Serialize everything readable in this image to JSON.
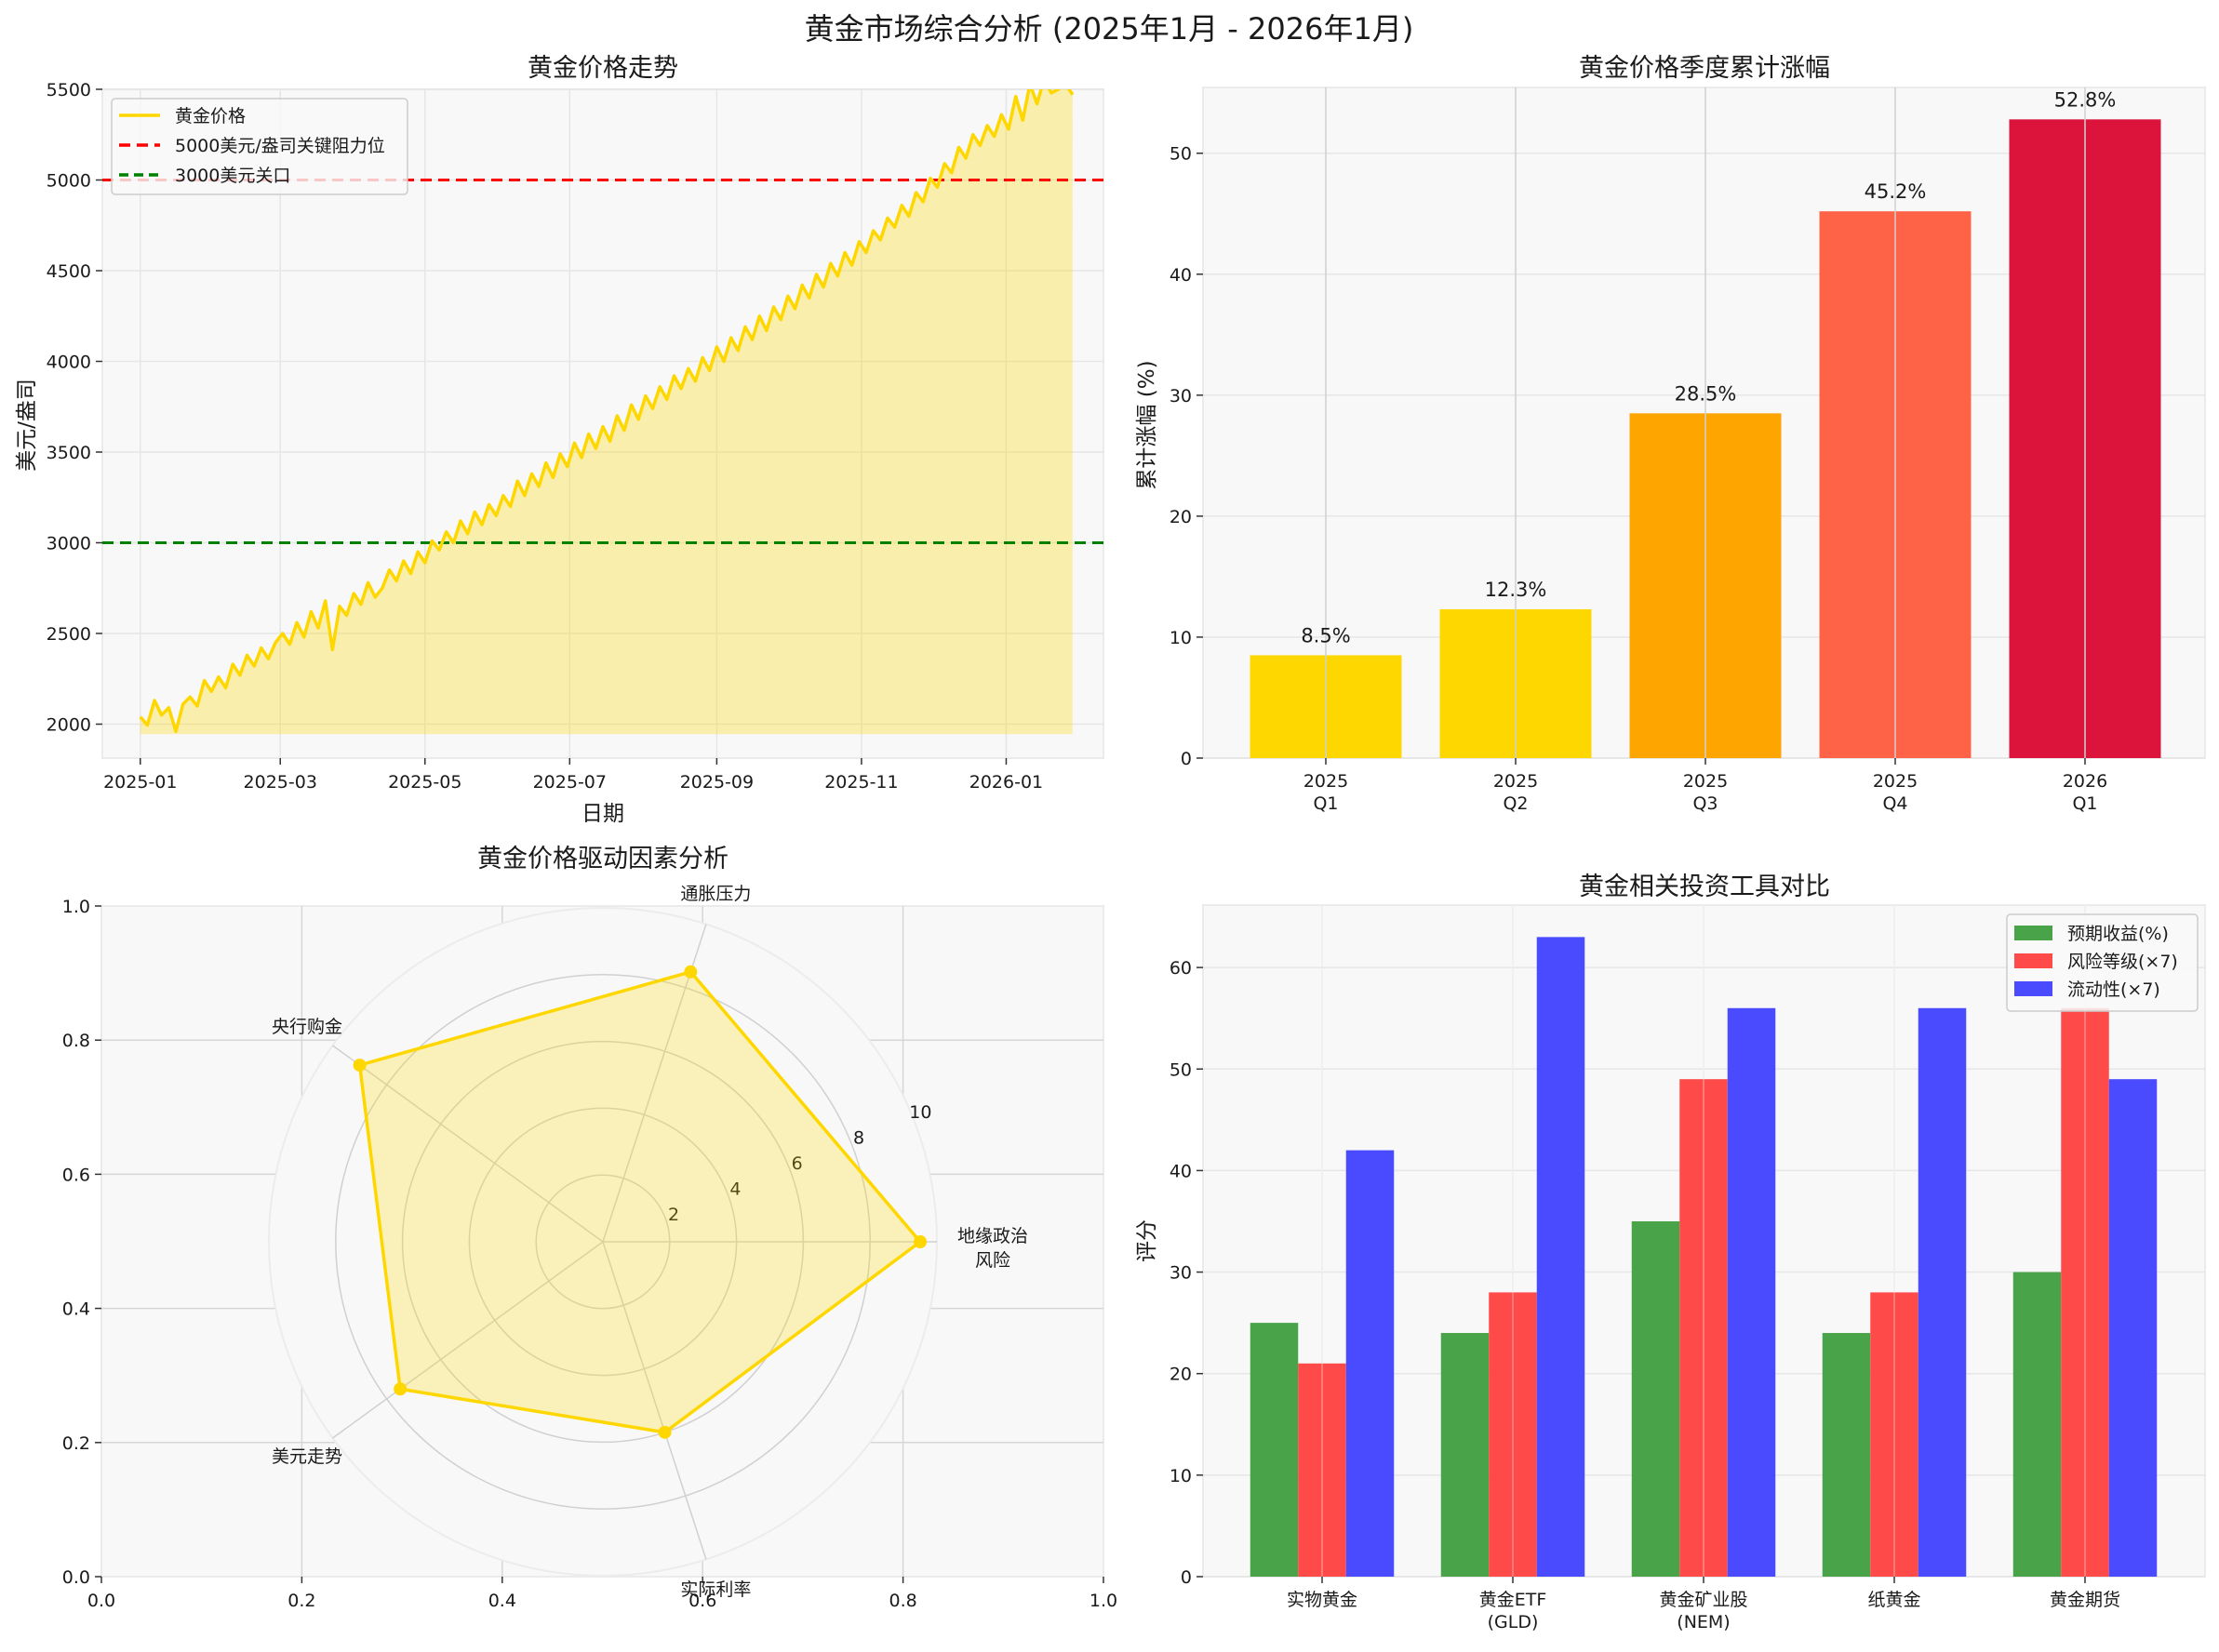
{
  "figure": {
    "title": "黄金市场综合分析 (2025年1月 - 2026年1月)",
    "background": "#ffffff",
    "axes_facecolor": "#f8f8f8",
    "grid_color": "#e6e6e6"
  },
  "chart_data": [
    {
      "id": "price-trend",
      "type": "line",
      "title": "黄金价格走势",
      "xlabel": "日期",
      "ylabel": "美元/盎司",
      "ylim": [
        1800,
        5500
      ],
      "yticks": [
        2000,
        2500,
        3000,
        3500,
        4000,
        4500,
        5000,
        5500
      ],
      "xticks": [
        "2025-01",
        "2025-03",
        "2025-05",
        "2025-07",
        "2025-09",
        "2025-11",
        "2026-01"
      ],
      "xtick_days": [
        0,
        59,
        120,
        181,
        243,
        304,
        365
      ],
      "xlim_days": [
        -16,
        406
      ],
      "grid": true,
      "fill_base": 1945,
      "series": [
        {
          "name": "黄金价格",
          "color": "#FFD700",
          "fill_color": "#FFD700",
          "fill_alpha": 0.3,
          "days": [
            0,
            3,
            6,
            9,
            12,
            15,
            18,
            21,
            24,
            27,
            30,
            33,
            36,
            39,
            42,
            45,
            48,
            51,
            54,
            57,
            60,
            63,
            66,
            69,
            72,
            75,
            78,
            81,
            84,
            87,
            90,
            93,
            96,
            99,
            102,
            105,
            108,
            111,
            114,
            117,
            120,
            123,
            126,
            129,
            132,
            135,
            138,
            141,
            144,
            147,
            150,
            153,
            156,
            159,
            162,
            165,
            168,
            171,
            174,
            177,
            180,
            183,
            186,
            189,
            192,
            195,
            198,
            201,
            204,
            207,
            210,
            213,
            216,
            219,
            222,
            225,
            228,
            231,
            234,
            237,
            240,
            243,
            246,
            249,
            252,
            255,
            258,
            261,
            264,
            267,
            270,
            273,
            276,
            279,
            282,
            285,
            288,
            291,
            294,
            297,
            300,
            303,
            306,
            309,
            312,
            315,
            318,
            321,
            324,
            327,
            330,
            333,
            336,
            339,
            342,
            345,
            348,
            351,
            354,
            357,
            360,
            363,
            366,
            369,
            372,
            375,
            378,
            381,
            384,
            387,
            390,
            393
          ],
          "values": [
            2040,
            1995,
            2130,
            2050,
            2090,
            1960,
            2110,
            2150,
            2100,
            2240,
            2180,
            2260,
            2200,
            2330,
            2270,
            2380,
            2320,
            2420,
            2360,
            2450,
            2500,
            2440,
            2560,
            2480,
            2620,
            2530,
            2680,
            2410,
            2650,
            2600,
            2720,
            2660,
            2780,
            2700,
            2750,
            2850,
            2790,
            2900,
            2830,
            2950,
            2890,
            3010,
            2960,
            3060,
            3000,
            3120,
            3050,
            3170,
            3100,
            3210,
            3150,
            3260,
            3200,
            3340,
            3260,
            3380,
            3310,
            3440,
            3360,
            3490,
            3420,
            3550,
            3470,
            3600,
            3520,
            3640,
            3560,
            3700,
            3620,
            3760,
            3680,
            3810,
            3740,
            3860,
            3790,
            3920,
            3850,
            3960,
            3890,
            4020,
            3950,
            4080,
            4000,
            4130,
            4060,
            4190,
            4120,
            4250,
            4170,
            4300,
            4230,
            4360,
            4290,
            4420,
            4350,
            4480,
            4410,
            4540,
            4470,
            4600,
            4530,
            4660,
            4600,
            4720,
            4670,
            4790,
            4740,
            4860,
            4800,
            4930,
            4880,
            5010,
            4960,
            5090,
            5040,
            5180,
            5120,
            5250,
            5190,
            5300,
            5240,
            5360,
            5280,
            5460,
            5330,
            5530,
            5420,
            5560,
            5480,
            5500,
            5530,
            5470
          ]
        }
      ],
      "hlines": [
        {
          "name": "5000美元/盎司关键阻力位",
          "y": 5000,
          "color": "#FF0000",
          "style": "dashed"
        },
        {
          "name": "3000美元关口",
          "y": 3000,
          "color": "#008000",
          "style": "dashed"
        }
      ],
      "legend": {
        "position": "upper left",
        "entries": [
          "黄金价格",
          "5000美元/盎司关键阻力位",
          "3000美元关口"
        ]
      }
    },
    {
      "id": "quarterly-gain",
      "type": "bar",
      "title": "黄金价格季度累计涨幅",
      "xlabel": "",
      "ylabel": "累计涨幅 (%)",
      "ylim": [
        0,
        55.44
      ],
      "yticks": [
        0,
        10,
        20,
        30,
        40,
        50
      ],
      "categories": [
        "2025\nQ1",
        "2025\nQ2",
        "2025\nQ3",
        "2025\nQ4",
        "2026\nQ1"
      ],
      "category_lines": [
        [
          "2025",
          "Q1"
        ],
        [
          "2025",
          "Q2"
        ],
        [
          "2025",
          "Q3"
        ],
        [
          "2025",
          "Q4"
        ],
        [
          "2026",
          "Q1"
        ]
      ],
      "values": [
        8.5,
        12.3,
        28.5,
        45.2,
        52.8
      ],
      "labels": [
        "8.5%",
        "12.3%",
        "28.5%",
        "45.2%",
        "52.8%"
      ],
      "colors": [
        "#FFD700",
        "#FFD700",
        "#FFA500",
        "#FF6347",
        "#DC143C"
      ],
      "grid": true
    },
    {
      "id": "drivers-radar",
      "type": "radar",
      "title": "黄金价格驱动因素分析",
      "axes": [
        "地缘政治\n风险",
        "通胀压力",
        "央行购金",
        "美元走势",
        "实际利率"
      ],
      "axes_lines": [
        [
          "地缘政治",
          "风险"
        ],
        [
          "通胀压力"
        ],
        [
          "央行购金"
        ],
        [
          "美元走势"
        ],
        [
          "实际利率"
        ]
      ],
      "values": [
        9.5,
        8.5,
        9.0,
        7.5,
        6.0
      ],
      "rlim": [
        0,
        10
      ],
      "rticks": [
        2,
        4,
        6,
        8,
        10
      ],
      "color": "#FFD700",
      "fill_alpha": 0.25,
      "background_cartesian": {
        "xticks": [
          "0.0",
          "0.2",
          "0.4",
          "0.6",
          "0.8",
          "1.0"
        ],
        "yticks": [
          "0.0",
          "0.2",
          "0.4",
          "0.6",
          "0.8",
          "1.0"
        ]
      }
    },
    {
      "id": "instrument-compare",
      "type": "bar",
      "title": "黄金相关投资工具对比",
      "xlabel": "",
      "ylabel": "评分",
      "ylim": [
        0,
        66.15
      ],
      "yticks": [
        0,
        10,
        20,
        30,
        40,
        50,
        60
      ],
      "categories": [
        "实物黄金",
        "黄金ETF\n(GLD)",
        "黄金矿业股\n(NEM)",
        "纸黄金",
        "黄金期货"
      ],
      "category_lines": [
        [
          "实物黄金"
        ],
        [
          "黄金ETF",
          "(GLD)"
        ],
        [
          "黄金矿业股",
          "(NEM)"
        ],
        [
          "纸黄金"
        ],
        [
          "黄金期货"
        ]
      ],
      "series": [
        {
          "name": "预期收益(%)",
          "color": "#49A449",
          "values": [
            25,
            24,
            35,
            24,
            30
          ]
        },
        {
          "name": "风险等级(×7)",
          "color": "#FF4A4A",
          "values": [
            21,
            28,
            49,
            28,
            56
          ]
        },
        {
          "name": "流动性(×7)",
          "color": "#4A4AFF",
          "values": [
            42,
            63,
            56,
            56,
            49
          ]
        }
      ],
      "legend": {
        "position": "upper right",
        "entries": [
          "预期收益(%)",
          "风险等级(×7)",
          "流动性(×7)"
        ]
      },
      "grid": true
    }
  ]
}
